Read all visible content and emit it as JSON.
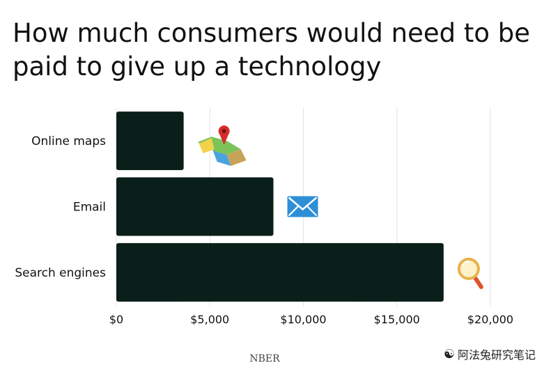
{
  "chart_data": {
    "type": "bar",
    "orientation": "horizontal",
    "title": "How much consumers would need to be paid to give up a technology",
    "categories": [
      "Online maps",
      "Email",
      "Search engines"
    ],
    "values": [
      3600,
      8400,
      17500
    ],
    "icons": [
      "map-icon",
      "envelope-icon",
      "magnifier-icon"
    ],
    "x_ticks": [
      0,
      5000,
      10000,
      15000,
      20000
    ],
    "x_tick_labels": [
      "$0",
      "$5,000",
      "$10,000",
      "$15,000",
      "$20,000"
    ],
    "xlim": [
      0,
      20000
    ],
    "grid": "vertical",
    "bar_color": "#0b1f1a",
    "source": "NBER"
  },
  "watermark": {
    "icon": "wechat-icon",
    "text": "阿法兔研究笔记"
  }
}
